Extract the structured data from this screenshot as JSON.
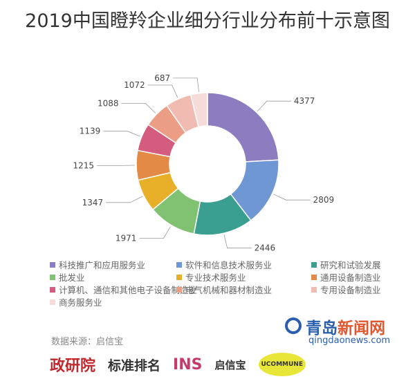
{
  "chart_data": {
    "type": "pie",
    "title": "2019中国瞪羚企业细分行业分布前十示意图",
    "categories": [
      "科技推广和应用服务业",
      "软件和信息技术服务业",
      "研究和试验发展",
      "批发业",
      "专业技术服务业",
      "通用设备制造业",
      "计算机、通信和其他电子设备制造业",
      "电气机械和器材制造业",
      "专用设备制造业",
      "商务服务业"
    ],
    "values": [
      4377,
      2809,
      2446,
      1971,
      1347,
      1215,
      1139,
      1088,
      1072,
      687
    ],
    "colors": [
      "#8b7dc0",
      "#6f97d3",
      "#3a9e90",
      "#80c272",
      "#e8b028",
      "#e38a46",
      "#d45c7e",
      "#ec9d86",
      "#f0bcb1",
      "#f6dcd8"
    ],
    "legend_position": "bottom",
    "donut": true
  },
  "source": "数据来源：启信宝",
  "brand": {
    "cn_a": "青岛",
    "cn_b": "新闻网",
    "en": "qingdaonews.com"
  },
  "logos": [
    "政研院",
    "标准排名",
    "INS",
    "启信宝",
    "UCOMMUNE"
  ]
}
